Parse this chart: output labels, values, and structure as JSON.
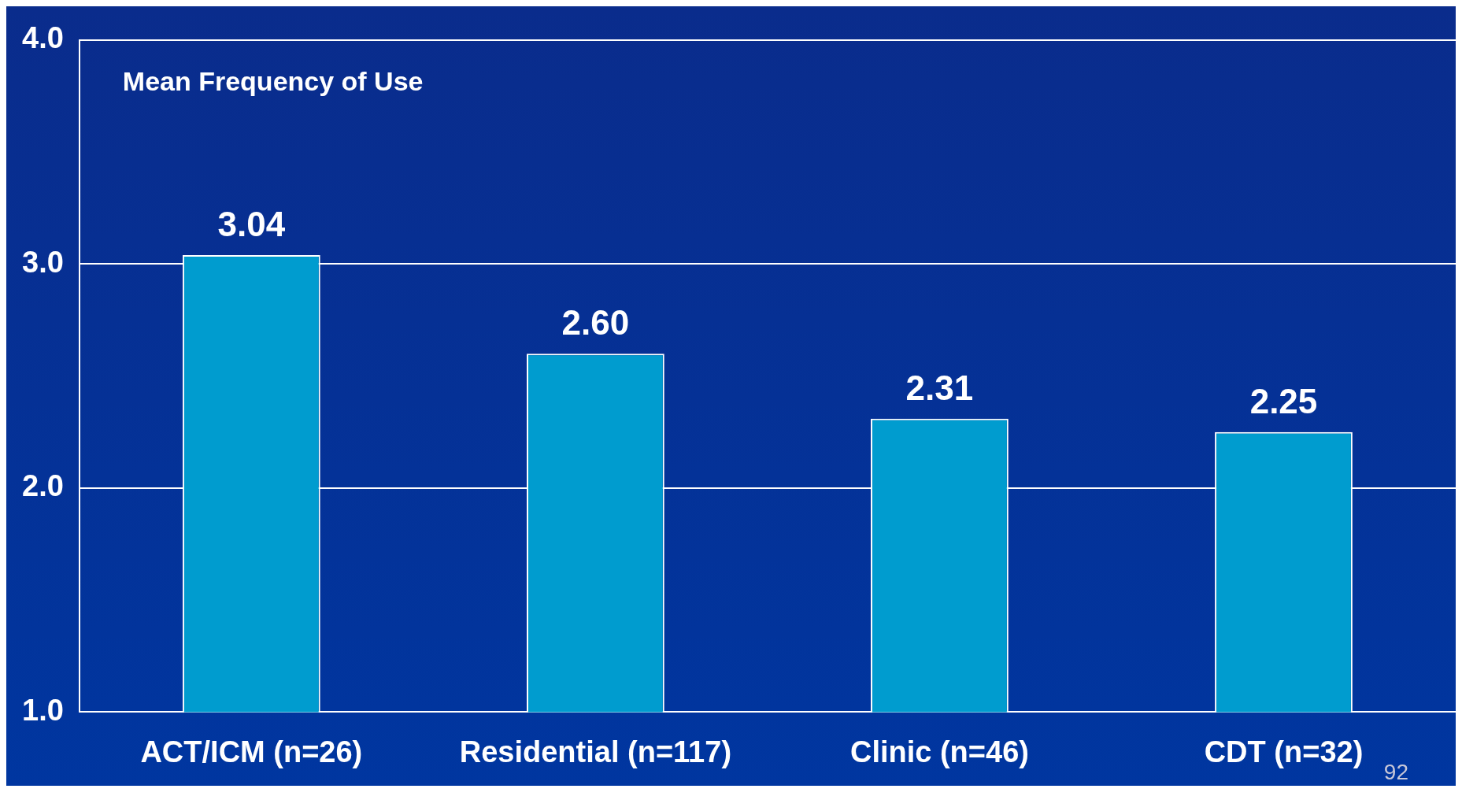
{
  "chart_data": {
    "type": "bar",
    "title": "Mean Frequency of Use",
    "categories": [
      "ACT/ICM (n=26)",
      "Residential (n=117)",
      "Clinic (n=46)",
      "CDT (n=32)"
    ],
    "values": [
      3.04,
      2.6,
      2.31,
      2.25
    ],
    "value_labels": [
      "3.04",
      "2.60",
      "2.31",
      "2.25"
    ],
    "color": "#009ccf",
    "ylim": [
      1,
      4
    ],
    "yticks": [
      {
        "value": 1,
        "label": "1.0"
      },
      {
        "value": 2,
        "label": "2.0"
      },
      {
        "value": 3,
        "label": "3.0"
      },
      {
        "value": 4,
        "label": "4.0"
      }
    ],
    "grid": "y",
    "annotations": [
      "92"
    ]
  }
}
